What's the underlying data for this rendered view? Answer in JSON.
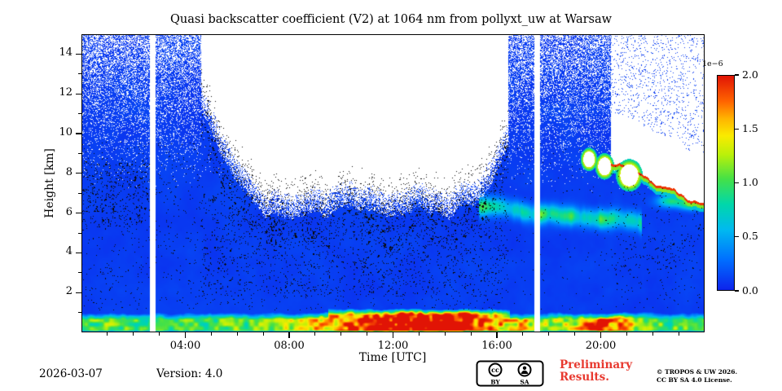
{
  "chart_data": {
    "type": "heatmap",
    "title": "Quasi backscatter coefficient (V2) at 1064 nm from pollyxt_uw at Warsaw",
    "x_axis": {
      "label": "Time [UTC]",
      "range": [
        0,
        24
      ],
      "major_ticks": [
        4,
        8,
        12,
        16,
        20
      ],
      "major_tick_labels": [
        "04:00",
        "08:00",
        "12:00",
        "16:00",
        "20:00"
      ],
      "minor_tick_step": 1
    },
    "y_axis": {
      "label": "Height [km]",
      "range": [
        0,
        15
      ],
      "major_ticks": [
        2,
        4,
        6,
        8,
        10,
        12,
        14
      ],
      "minor_tick_step": 1
    },
    "colorbar": {
      "exponent_label": "1e−6",
      "range": [
        0,
        2
      ],
      "ticks": [
        0,
        0.5,
        1,
        1.5,
        2
      ],
      "tick_labels": [
        "0.0",
        "0.5",
        "1.0",
        "1.5",
        "2.0"
      ],
      "colormap": [
        [
          0,
          [
            13,
            35,
            235
          ]
        ],
        [
          0.14,
          [
            0,
            110,
            255
          ]
        ],
        [
          0.28,
          [
            0,
            185,
            240
          ]
        ],
        [
          0.4,
          [
            0,
            215,
            170
          ]
        ],
        [
          0.52,
          [
            70,
            225,
            70
          ]
        ],
        [
          0.63,
          [
            185,
            240,
            10
          ]
        ],
        [
          0.72,
          [
            250,
            235,
            0
          ]
        ],
        [
          0.8,
          [
            255,
            180,
            0
          ]
        ],
        [
          0.88,
          [
            255,
            100,
            0
          ]
        ],
        [
          1,
          [
            225,
            20,
            5
          ]
        ]
      ]
    },
    "no_data_color": "#ffffff",
    "noise_color": "#0a0a0a",
    "features": {
      "gaps_utc": [
        [
          2.62,
          2.84
        ],
        [
          17.45,
          17.67
        ]
      ],
      "surface_layer": {
        "base_top_km": 0.55,
        "peak_time": 13.0,
        "peak_width": 3.8,
        "base_value": 1.0,
        "peak_value": 2.3,
        "evening_peak_time": 20.2,
        "evening_peak_amp": 0.9,
        "evening_peak_width": 1.1
      },
      "elevated_layer": {
        "t_start": 15.3,
        "t_end": 21.6,
        "height_start": 6.35,
        "height_end": 5.5,
        "thickness": 0.45,
        "value": 0.75
      },
      "daytime_mask": {
        "t_start": 4.6,
        "t_end": 16.45,
        "center": 10.8,
        "flat_half_width": 3.5,
        "quad_coef": 0.75,
        "min_base_km": 6.0
      },
      "cloud_region": {
        "t_start": 20.4,
        "base_start_km": 8.6,
        "base_end_km": 6.4,
        "rim_value": 1.9
      },
      "cloud_blobs": [
        {
          "t": 19.55,
          "h": 8.7,
          "rt": 0.22,
          "rh": 0.4
        },
        {
          "t": 20.15,
          "h": 8.35,
          "rt": 0.25,
          "rh": 0.45
        },
        {
          "t": 21.1,
          "h": 7.9,
          "rt": 0.35,
          "rh": 0.55
        }
      ],
      "green_patches": [
        {
          "t": 22.7,
          "h": 6.6,
          "rt": 0.5,
          "rh": 0.3,
          "v": 0.8
        },
        {
          "t": 23.45,
          "h": 6.45,
          "rt": 0.4,
          "rh": 0.28,
          "v": 0.9
        }
      ]
    },
    "regions_note": "Blue background ~0-0.2e-6 backscatter; strong aerosol layer below ~0.8 km, red (>=2e-6) from ~10:00-16:30 and ~19:30-21:00; white = no data (low daytime SNR above ~6 km between 04:40-16:30, clouds after 20:00, calibration gaps at ~02:45 and ~17:30); green-yellow elevated layer 5.5-6.5 km from ~15:30-21:30; black speckle = noise."
  },
  "footer": {
    "date": "2026-03-07",
    "version": "Version: 4.0",
    "preliminary_line1": "Preliminary",
    "preliminary_line2": "Results.",
    "preliminary_color": "#e8392f",
    "copyright_line1": "© TROPOS & UW 2026.",
    "copyright_line2": "CC BY SA 4.0 License.",
    "license_badge": {
      "cc": "cc",
      "by": "BY",
      "sa": "SA"
    }
  }
}
